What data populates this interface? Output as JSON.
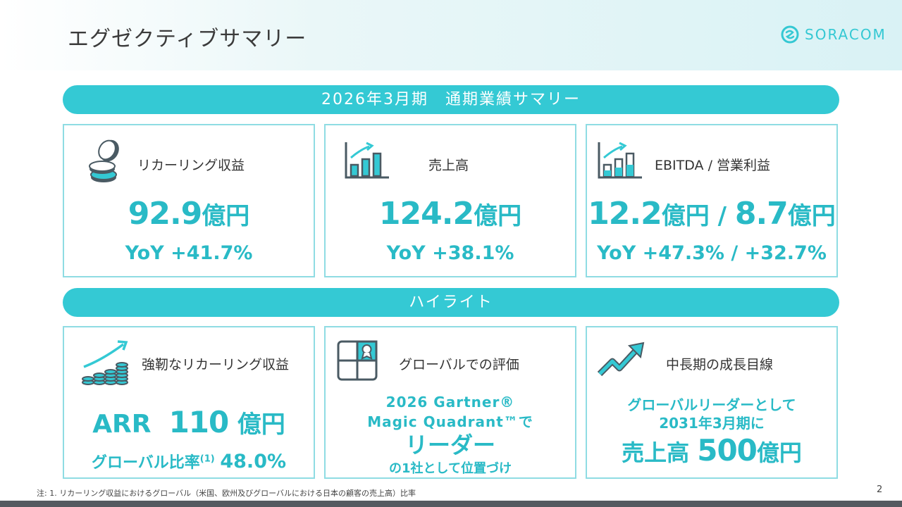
{
  "page": {
    "title": "エグゼクティブサマリー",
    "number": "2"
  },
  "logo": {
    "text": "SORACOM"
  },
  "summary": {
    "band": "2026年3月期　通期業績サマリー",
    "cards": [
      {
        "label": "リカーリング収益",
        "value": "92.9",
        "unit": "億円",
        "yoy": "YoY +41.7%",
        "icon": "coins-icon"
      },
      {
        "label": "売上高",
        "value": "124.2",
        "unit": "億円",
        "yoy": "YoY +38.1%",
        "icon": "bar-chart-growth-icon"
      },
      {
        "label": "EBITDA / 営業利益",
        "value1": "12.2",
        "unit1": "億円",
        "sep": " / ",
        "value2": "8.7",
        "unit2": "億円",
        "yoy": "YoY +47.3% / +32.7%",
        "icon": "bar-chart-stacked-icon"
      }
    ]
  },
  "highlights": {
    "band": "ハイライト",
    "cards": [
      {
        "label": "強靭なリカーリング収益",
        "arr_prefix": "ARR",
        "arr_value": "110",
        "arr_unit": "億円",
        "ratio_label": "グローバル比率",
        "ratio_note": "(1)",
        "ratio_value": "48.0%",
        "icon": "coin-stacks-growth-icon"
      },
      {
        "label": "グローバルでの評価",
        "line1": "2026 Gartner®",
        "line2": "Magic Quadrant™で",
        "line3": "リーダー",
        "line4": "の1社として位置づけ",
        "icon": "magic-quadrant-icon"
      },
      {
        "label": "中長期の成長目線",
        "line1": "グローバルリーダーとして",
        "line2": "2031年3月期に",
        "target_prefix": "売上高",
        "target_value": "500",
        "target_unit": "億円",
        "icon": "trend-arrow-icon"
      }
    ]
  },
  "footnote": "注: 1. リカーリング収益におけるグローバル（米国、欧州及びグローバルにおける日本の顧客の売上高）比率",
  "colors": {
    "accent": "#34c9d4",
    "text_accent": "#29bac6",
    "border": "#8fdce3",
    "dark": "#4a5a63"
  }
}
